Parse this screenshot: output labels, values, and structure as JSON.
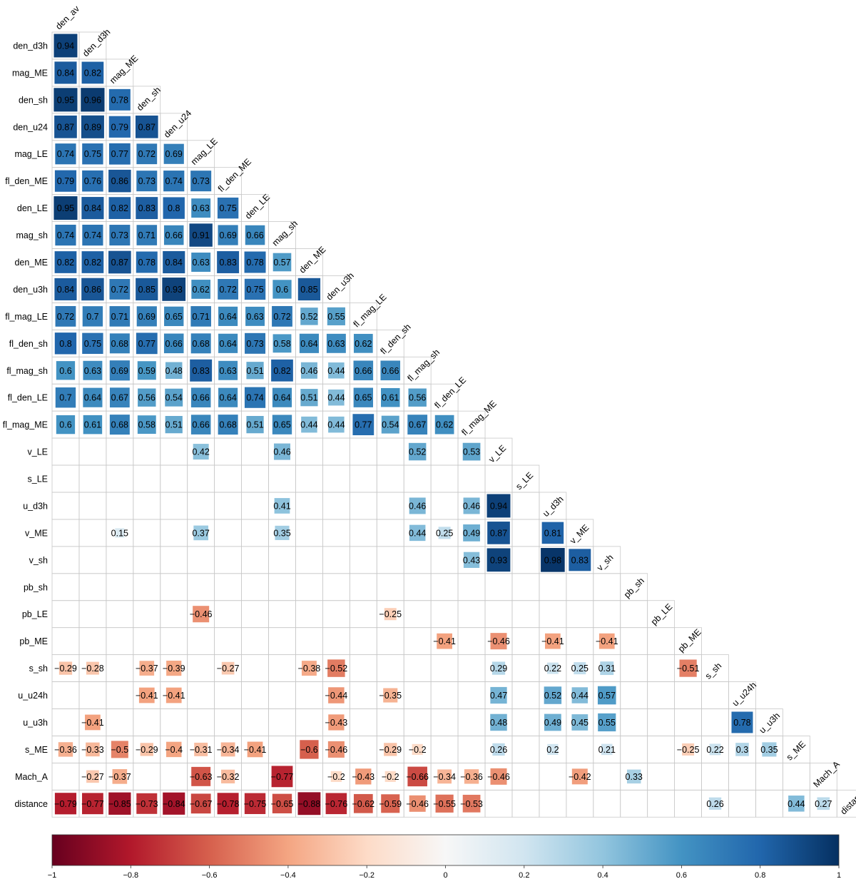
{
  "chart_data": {
    "type": "heatmap",
    "title": "",
    "variables": [
      "den_av",
      "den_d3h",
      "mag_ME",
      "den_sh",
      "den_u24",
      "mag_LE",
      "fl_den_ME",
      "den_LE",
      "mag_sh",
      "den_ME",
      "den_u3h",
      "fl_mag_LE",
      "fl_den_sh",
      "fl_mag_sh",
      "fl_den_LE",
      "fl_mag_ME",
      "v_LE",
      "s_LE",
      "u_d3h",
      "v_ME",
      "v_sh",
      "pb_sh",
      "pb_LE",
      "pb_ME",
      "s_sh",
      "u_u24h",
      "u_u3h",
      "s_ME",
      "Mach_A",
      "distance"
    ],
    "rows": [
      {
        "label": "den_d3h",
        "values": [
          0.94
        ]
      },
      {
        "label": "mag_ME",
        "values": [
          0.84,
          0.82
        ]
      },
      {
        "label": "den_sh",
        "values": [
          0.95,
          0.96,
          0.78
        ]
      },
      {
        "label": "den_u24",
        "values": [
          0.87,
          0.89,
          0.79,
          0.87
        ]
      },
      {
        "label": "mag_LE",
        "values": [
          0.74,
          0.75,
          0.77,
          0.72,
          0.69
        ]
      },
      {
        "label": "fl_den_ME",
        "values": [
          0.79,
          0.76,
          0.86,
          0.73,
          0.74,
          0.73
        ]
      },
      {
        "label": "den_LE",
        "values": [
          0.95,
          0.84,
          0.82,
          0.83,
          0.8,
          0.63,
          0.75
        ]
      },
      {
        "label": "mag_sh",
        "values": [
          0.74,
          0.74,
          0.73,
          0.71,
          0.66,
          0.91,
          0.69,
          0.66
        ]
      },
      {
        "label": "den_ME",
        "values": [
          0.82,
          0.82,
          0.87,
          0.78,
          0.84,
          0.63,
          0.83,
          0.78,
          0.57
        ]
      },
      {
        "label": "den_u3h",
        "values": [
          0.84,
          0.86,
          0.72,
          0.85,
          0.93,
          0.62,
          0.72,
          0.75,
          0.6,
          0.85
        ]
      },
      {
        "label": "fl_mag_LE",
        "values": [
          0.72,
          0.7,
          0.71,
          0.69,
          0.65,
          0.71,
          0.64,
          0.63,
          0.72,
          0.52,
          0.55
        ]
      },
      {
        "label": "fl_den_sh",
        "values": [
          0.8,
          0.75,
          0.68,
          0.77,
          0.66,
          0.68,
          0.64,
          0.73,
          0.58,
          0.64,
          0.63,
          0.62
        ]
      },
      {
        "label": "fl_mag_sh",
        "values": [
          0.6,
          0.63,
          0.69,
          0.59,
          0.48,
          0.83,
          0.63,
          0.51,
          0.82,
          0.46,
          0.44,
          0.66,
          0.66
        ]
      },
      {
        "label": "fl_den_LE",
        "values": [
          0.7,
          0.64,
          0.67,
          0.56,
          0.54,
          0.66,
          0.64,
          0.74,
          0.64,
          0.51,
          0.44,
          0.65,
          0.61,
          0.56
        ]
      },
      {
        "label": "fl_mag_ME",
        "values": [
          0.6,
          0.61,
          0.68,
          0.58,
          0.51,
          0.66,
          0.68,
          0.51,
          0.65,
          0.44,
          0.44,
          0.77,
          0.54,
          0.67,
          0.62
        ]
      },
      {
        "label": "v_LE",
        "values": [
          null,
          null,
          null,
          null,
          null,
          0.42,
          null,
          null,
          0.46,
          null,
          null,
          null,
          null,
          0.52,
          null,
          0.53
        ]
      },
      {
        "label": "s_LE",
        "values": [
          null,
          null,
          null,
          null,
          null,
          null,
          null,
          null,
          null,
          null,
          null,
          null,
          null,
          null,
          null,
          null,
          null
        ]
      },
      {
        "label": "u_d3h",
        "values": [
          null,
          null,
          null,
          null,
          null,
          null,
          null,
          null,
          0.41,
          null,
          null,
          null,
          null,
          0.46,
          null,
          0.46,
          0.94,
          null
        ]
      },
      {
        "label": "v_ME",
        "values": [
          null,
          null,
          0.15,
          null,
          null,
          0.37,
          null,
          null,
          0.35,
          null,
          null,
          null,
          null,
          0.44,
          0.25,
          0.49,
          0.87,
          null,
          0.81
        ]
      },
      {
        "label": "v_sh",
        "values": [
          null,
          null,
          null,
          null,
          null,
          null,
          null,
          null,
          null,
          null,
          null,
          null,
          null,
          null,
          null,
          0.43,
          0.93,
          null,
          0.98,
          0.83
        ]
      },
      {
        "label": "pb_sh",
        "values": [
          null,
          null,
          null,
          null,
          null,
          null,
          null,
          null,
          null,
          null,
          null,
          null,
          null,
          null,
          null,
          null,
          null,
          null,
          null,
          null,
          null
        ]
      },
      {
        "label": "pb_LE",
        "values": [
          null,
          null,
          null,
          null,
          null,
          -0.46,
          null,
          null,
          null,
          null,
          null,
          null,
          -0.25,
          null,
          null,
          null,
          null,
          null,
          null,
          null,
          null,
          null
        ]
      },
      {
        "label": "pb_ME",
        "values": [
          null,
          null,
          null,
          null,
          null,
          null,
          null,
          null,
          null,
          null,
          null,
          null,
          null,
          null,
          -0.41,
          null,
          -0.46,
          null,
          -0.41,
          null,
          -0.41,
          null,
          null
        ]
      },
      {
        "label": "s_sh",
        "values": [
          -0.29,
          -0.28,
          null,
          -0.37,
          -0.39,
          null,
          -0.27,
          null,
          null,
          -0.38,
          -0.52,
          null,
          null,
          null,
          null,
          null,
          0.29,
          null,
          0.22,
          0.25,
          0.31,
          null,
          null,
          -0.51
        ]
      },
      {
        "label": "u_u24h",
        "values": [
          null,
          null,
          null,
          -0.41,
          -0.41,
          null,
          null,
          null,
          null,
          null,
          -0.44,
          null,
          -0.35,
          null,
          null,
          null,
          0.47,
          null,
          0.52,
          0.44,
          0.57,
          null,
          null,
          null,
          null
        ]
      },
      {
        "label": "u_u3h",
        "values": [
          null,
          -0.41,
          null,
          null,
          null,
          null,
          null,
          null,
          null,
          null,
          -0.43,
          null,
          null,
          null,
          null,
          null,
          0.48,
          null,
          0.49,
          0.45,
          0.55,
          null,
          null,
          null,
          null,
          0.78
        ]
      },
      {
        "label": "s_ME",
        "values": [
          -0.36,
          -0.33,
          -0.5,
          -0.29,
          -0.4,
          -0.31,
          -0.34,
          -0.41,
          null,
          -0.6,
          -0.46,
          null,
          -0.29,
          -0.2,
          null,
          null,
          0.26,
          null,
          0.2,
          null,
          0.21,
          null,
          null,
          -0.25,
          0.22,
          0.3,
          0.35
        ]
      },
      {
        "label": "Mach_A",
        "values": [
          null,
          -0.27,
          -0.37,
          null,
          null,
          -0.63,
          -0.32,
          null,
          -0.77,
          null,
          -0.2,
          -0.43,
          -0.2,
          -0.66,
          -0.34,
          -0.36,
          -0.46,
          null,
          null,
          -0.42,
          null,
          0.33,
          null,
          null,
          null,
          null,
          null,
          null
        ]
      },
      {
        "label": "distance",
        "values": [
          -0.79,
          -0.77,
          -0.85,
          -0.73,
          -0.84,
          -0.67,
          -0.78,
          -0.75,
          -0.65,
          -0.88,
          -0.76,
          -0.62,
          -0.59,
          -0.46,
          -0.55,
          -0.53,
          null,
          null,
          null,
          null,
          null,
          null,
          null,
          null,
          0.26,
          null,
          null,
          0.44,
          0.27
        ]
      }
    ],
    "colorbar": {
      "range": [
        -1,
        1
      ],
      "ticks": [
        -1,
        -0.8,
        -0.6,
        -0.4,
        -0.2,
        0,
        0.2,
        0.4,
        0.6,
        0.8,
        1
      ],
      "tick_labels": [
        "−1",
        "−0.8",
        "−0.6",
        "−0.4",
        "−0.2",
        "0",
        "0.2",
        "0.4",
        "0.6",
        "0.8",
        "1"
      ],
      "placement": "bottom"
    },
    "colors": {
      "negative_end": "#67001f",
      "positive_end": "#053061",
      "grid": "#c8c8c8"
    }
  }
}
